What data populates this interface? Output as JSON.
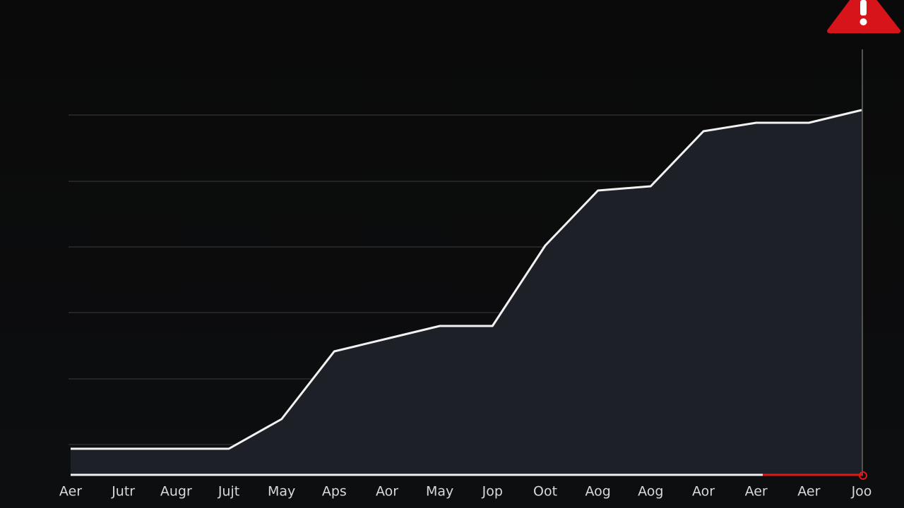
{
  "chart_data": {
    "type": "area",
    "categories": [
      "Aer",
      "Jutr",
      "Augr",
      "Jujt",
      "May",
      "Aps",
      "Aor",
      "May",
      "Jop",
      "Oot",
      "Aog",
      "Aog",
      "Aor",
      "Aer",
      "Aer",
      "Joo"
    ],
    "values": [
      6,
      6,
      6,
      6,
      13,
      29,
      32,
      35,
      35,
      54,
      67,
      68,
      81,
      83,
      83,
      86
    ],
    "ylim": [
      0,
      100
    ],
    "color": "#f2f2f2",
    "fill": "#1d2026"
  }
}
